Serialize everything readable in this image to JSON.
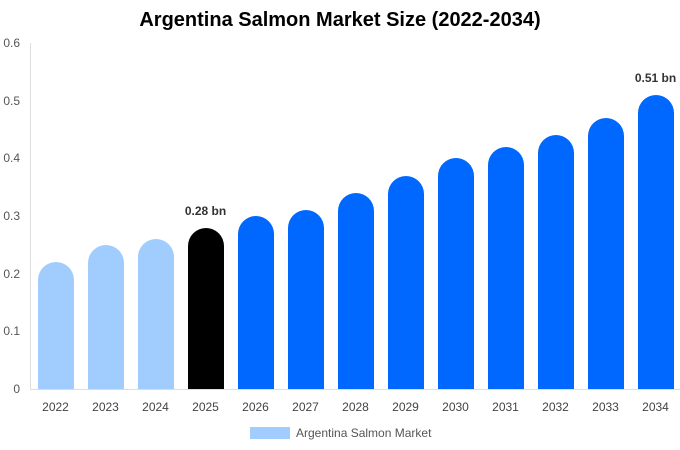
{
  "title": "Argentina Salmon Market Size (2022-2034)",
  "legend": {
    "label": "Argentina Salmon Market",
    "color": "#a0cdfd"
  },
  "colors": {
    "historical": "#a0cdfd",
    "current": "#000000",
    "forecast": "#0068fe"
  },
  "y_ticks": [
    "0",
    "0.1",
    "0.2",
    "0.3",
    "0.4",
    "0.5",
    "0.6"
  ],
  "annotations": {
    "a2025": "0.28 bn",
    "a2034": "0.51 bn"
  },
  "chart_data": {
    "type": "bar",
    "title": "Argentina Salmon Market Size (2022-2034)",
    "xlabel": "",
    "ylabel": "",
    "ylim": [
      0,
      0.6
    ],
    "grid": false,
    "legend_position": "bottom",
    "categories": [
      "2022",
      "2023",
      "2024",
      "2025",
      "2026",
      "2027",
      "2028",
      "2029",
      "2030",
      "2031",
      "2032",
      "2033",
      "2034"
    ],
    "series": [
      {
        "name": "Argentina Salmon Market",
        "values": [
          0.22,
          0.25,
          0.26,
          0.28,
          0.3,
          0.31,
          0.34,
          0.37,
          0.4,
          0.42,
          0.44,
          0.47,
          0.51
        ]
      }
    ],
    "annotations": [
      {
        "category": "2025",
        "text": "0.28 bn"
      },
      {
        "category": "2034",
        "text": "0.51 bn"
      }
    ]
  }
}
